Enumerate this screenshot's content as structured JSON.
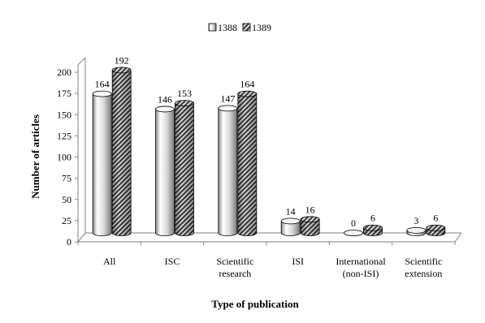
{
  "chart_data": {
    "type": "bar",
    "title": "",
    "xlabel": "Type of publication",
    "ylabel": "Number  of articles",
    "ylim": [
      0,
      200
    ],
    "yticks": [
      "0",
      "25",
      "50",
      "75",
      "100",
      "125",
      "150",
      "175",
      "200"
    ],
    "categories": [
      [
        "All"
      ],
      [
        "ISC"
      ],
      [
        "Scientific",
        "research"
      ],
      [
        "ISI"
      ],
      [
        "International",
        "(non-ISI)"
      ],
      [
        "Scientific",
        "extension"
      ]
    ],
    "series": [
      {
        "name": "1388",
        "values": [
          164,
          146,
          147,
          14,
          0,
          3
        ],
        "labels": [
          "164",
          "146",
          "147",
          "14",
          "0",
          "3"
        ],
        "color": "#e0e0e0",
        "pattern": "cylinder-gradient"
      },
      {
        "name": "1389",
        "values": [
          192,
          153,
          164,
          16,
          6,
          6
        ],
        "labels": [
          "192",
          "153",
          "164",
          "16",
          "6",
          "6"
        ],
        "color": "#555555",
        "pattern": "diagonal-hatch"
      }
    ],
    "legend_position": "top-center",
    "grid": false,
    "style": "3d-cylinder"
  }
}
